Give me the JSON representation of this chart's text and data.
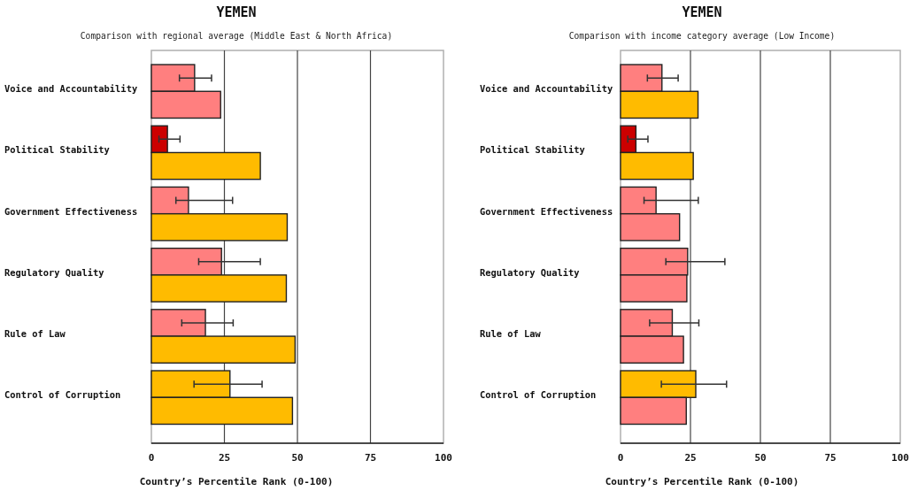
{
  "chart_data": [
    {
      "type": "bar",
      "orientation": "horizontal",
      "title": "YEMEN",
      "subtitle": "Comparison with regional average (Middle East & North Africa)",
      "xlabel": "Country’s Percentile Rank (0-100)",
      "categories": [
        "Voice and Accountability",
        "Political Stability",
        "Government Effectiveness",
        "Regulatory Quality",
        "Rule of Law",
        "Control of Corruption"
      ],
      "series": [
        {
          "colors": [
            "#ff7f7f",
            "#cc0000",
            "#ff7f7f",
            "#ff7f7f",
            "#ff7f7f",
            "#ffbb00"
          ],
          "values": [
            14.8,
            5.5,
            12.7,
            24.0,
            18.5,
            26.9
          ],
          "errors": [
            [
              9.6,
              20.6
            ],
            [
              2.6,
              9.8
            ],
            [
              8.4,
              27.8
            ],
            [
              16.2,
              37.3
            ],
            [
              10.4,
              28.0
            ],
            [
              14.6,
              37.9
            ]
          ]
        },
        {
          "colors": [
            "#ff7f7f",
            "#ffbb00",
            "#ffbb00",
            "#ffbb00",
            "#ffbb00",
            "#ffbb00"
          ],
          "values": [
            23.7,
            37.3,
            46.5,
            46.2,
            49.2,
            48.3
          ]
        }
      ],
      "xlim": [
        0,
        100
      ],
      "xticks": [
        0,
        25,
        50,
        75,
        100
      ],
      "grid": "x"
    },
    {
      "type": "bar",
      "orientation": "horizontal",
      "title": "YEMEN",
      "subtitle": "Comparison with income category average (Low Income)",
      "xlabel": "Country’s Percentile Rank (0-100)",
      "categories": [
        "Voice and Accountability",
        "Political Stability",
        "Government Effectiveness",
        "Regulatory Quality",
        "Rule of Law",
        "Control of Corruption"
      ],
      "series": [
        {
          "colors": [
            "#ff7f7f",
            "#cc0000",
            "#ff7f7f",
            "#ff7f7f",
            "#ff7f7f",
            "#ffbb00"
          ],
          "values": [
            14.8,
            5.5,
            12.7,
            24.0,
            18.5,
            26.9
          ],
          "errors": [
            [
              9.6,
              20.6
            ],
            [
              2.6,
              9.8
            ],
            [
              8.4,
              27.8
            ],
            [
              16.2,
              37.3
            ],
            [
              10.4,
              28.0
            ],
            [
              14.6,
              37.9
            ]
          ]
        },
        {
          "colors": [
            "#ffbb00",
            "#ffbb00",
            "#ff7f7f",
            "#ff7f7f",
            "#ff7f7f",
            "#ff7f7f"
          ],
          "values": [
            27.7,
            26.0,
            21.1,
            23.7,
            22.5,
            23.5
          ]
        }
      ],
      "xlim": [
        0,
        100
      ],
      "xticks": [
        0,
        25,
        50,
        75,
        100
      ],
      "grid": "x"
    }
  ]
}
